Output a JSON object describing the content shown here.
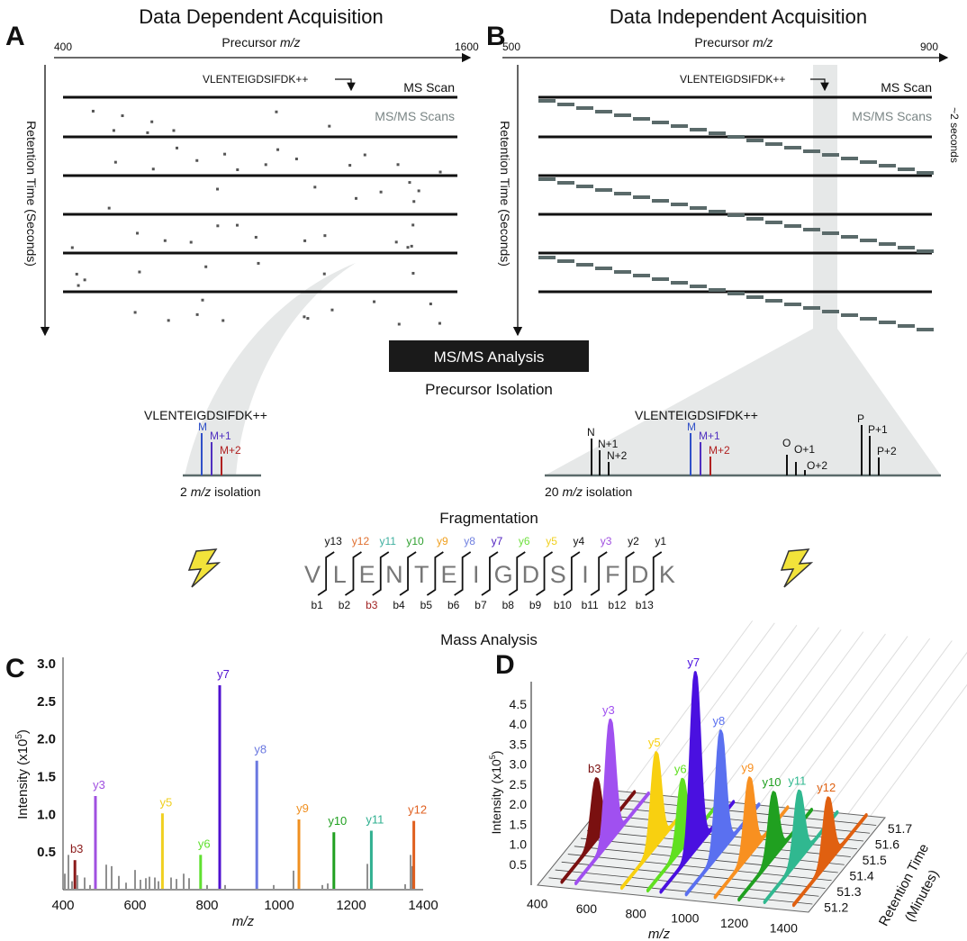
{
  "panelA": {
    "letter": "A",
    "title": "Data Dependent Acquisition",
    "x_axis": {
      "label_prefix": "Precursor ",
      "label_italic": "m/z",
      "min": "400",
      "max": "1600"
    },
    "y_axis_label": "Retention Time (Seconds)",
    "peptide": "VLENTEIGDSIFDK++",
    "ms_scan": "MS Scan",
    "msms_scans": "MS/MS Scans"
  },
  "panelB": {
    "letter": "B",
    "title": "Data Independent Acquisition",
    "x_axis": {
      "label_prefix": "Precursor ",
      "label_italic": "m/z",
      "min": "500",
      "max": "900"
    },
    "y_axis_label": "Retention Time (Seconds)",
    "peptide": "VLENTEIGDSIFDK++",
    "ms_scan": "MS Scan",
    "msms_scans": "MS/MS Scans",
    "cycle_label": "~2 seconds"
  },
  "analysis_box": "MS/MS Analysis",
  "precursor_isolation": "Precursor Isolation",
  "isolation_left": {
    "peptide": "VLENTEIGDSIFDK++",
    "peaks": [
      {
        "label": "M",
        "color": "#3050c8"
      },
      {
        "label": "M+1",
        "color": "#5030c0"
      },
      {
        "label": "M+2",
        "color": "#b02020"
      }
    ],
    "caption": {
      "pre": "2 ",
      "italic": "m/z",
      "post": " isolation"
    }
  },
  "isolation_right": {
    "peptide": "VLENTEIGDSIFDK++",
    "peaks": [
      {
        "label": "N",
        "color": "#111111"
      },
      {
        "label": "N+1",
        "color": "#111111"
      },
      {
        "label": "N+2",
        "color": "#111111"
      },
      {
        "label": "M",
        "color": "#3050c8"
      },
      {
        "label": "M+1",
        "color": "#5030c0"
      },
      {
        "label": "M+2",
        "color": "#b02020"
      },
      {
        "label": "O",
        "color": "#111111"
      },
      {
        "label": "O+1",
        "color": "#111111"
      },
      {
        "label": "O+2",
        "color": "#111111"
      },
      {
        "label": "P",
        "color": "#111111"
      },
      {
        "label": "P+1",
        "color": "#111111"
      },
      {
        "label": "P+2",
        "color": "#111111"
      }
    ],
    "caption": {
      "pre": "20 ",
      "italic": "m/z",
      "post": " isolation"
    }
  },
  "fragmentation": {
    "title": "Fragmentation",
    "sequence": [
      "V",
      "L",
      "E",
      "N",
      "T",
      "E",
      "I",
      "G",
      "D",
      "S",
      "I",
      "F",
      "D",
      "K"
    ],
    "y_ions": [
      {
        "label": "y13",
        "color": "#111111"
      },
      {
        "label": "y12",
        "color": "#e07030"
      },
      {
        "label": "y11",
        "color": "#40b0a0"
      },
      {
        "label": "y10",
        "color": "#30a030"
      },
      {
        "label": "y9",
        "color": "#f0a020"
      },
      {
        "label": "y8",
        "color": "#7080e0"
      },
      {
        "label": "y7",
        "color": "#5020c0"
      },
      {
        "label": "y6",
        "color": "#70e040"
      },
      {
        "label": "y5",
        "color": "#f0d020"
      },
      {
        "label": "y4",
        "color": "#111111"
      },
      {
        "label": "y3",
        "color": "#a050e0"
      },
      {
        "label": "y2",
        "color": "#111111"
      },
      {
        "label": "y1",
        "color": "#111111"
      }
    ],
    "b_ions": [
      {
        "label": "b1",
        "color": "#111111"
      },
      {
        "label": "b2",
        "color": "#111111"
      },
      {
        "label": "b3",
        "color": "#a02020"
      },
      {
        "label": "b4",
        "color": "#111111"
      },
      {
        "label": "b5",
        "color": "#111111"
      },
      {
        "label": "b6",
        "color": "#111111"
      },
      {
        "label": "b7",
        "color": "#111111"
      },
      {
        "label": "b8",
        "color": "#111111"
      },
      {
        "label": "b9",
        "color": "#111111"
      },
      {
        "label": "b10",
        "color": "#111111"
      },
      {
        "label": "b11",
        "color": "#111111"
      },
      {
        "label": "b12",
        "color": "#111111"
      },
      {
        "label": "b13",
        "color": "#111111"
      }
    ]
  },
  "mass_analysis": "Mass Analysis",
  "chart_data": [
    {
      "panel": "C",
      "type": "bar",
      "xlabel": "m/z",
      "ylabel": "Intensity (x10^5)",
      "ylabel_parts": {
        "pre": "Intensity (x10",
        "sup": "5",
        "post": ")"
      },
      "xlim": [
        400,
        1400
      ],
      "ylim": [
        0,
        3.0
      ],
      "xticks": [
        "400",
        "600",
        "800",
        "1000",
        "1200",
        "1400"
      ],
      "yticks": [
        "0.5",
        "1.0",
        "1.5",
        "2.0",
        "2.5",
        "3.0"
      ],
      "labeled_peaks": [
        {
          "label": "b3",
          "mz": 433,
          "intensity": 0.38,
          "color": "#8b1a1a"
        },
        {
          "label": "y3",
          "mz": 490,
          "intensity": 1.23,
          "color": "#a050e0"
        },
        {
          "label": "y5",
          "mz": 676,
          "intensity": 1.0,
          "color": "#f0d020"
        },
        {
          "label": "y6",
          "mz": 782,
          "intensity": 0.45,
          "color": "#60e030"
        },
        {
          "label": "y7",
          "mz": 835,
          "intensity": 2.7,
          "color": "#5010d0"
        },
        {
          "label": "y8",
          "mz": 938,
          "intensity": 1.7,
          "color": "#6a78e0"
        },
        {
          "label": "y9",
          "mz": 1055,
          "intensity": 0.92,
          "color": "#f09020"
        },
        {
          "label": "y10",
          "mz": 1152,
          "intensity": 0.75,
          "color": "#20a020"
        },
        {
          "label": "y11",
          "mz": 1256,
          "intensity": 0.77,
          "color": "#30b090"
        },
        {
          "label": "y12",
          "mz": 1374,
          "intensity": 0.9,
          "color": "#e06020"
        }
      ],
      "other_peaks": [
        [
          405,
          0.2
        ],
        [
          415,
          0.45
        ],
        [
          425,
          0.1
        ],
        [
          440,
          0.18
        ],
        [
          460,
          0.15
        ],
        [
          475,
          0.05
        ],
        [
          520,
          0.32
        ],
        [
          535,
          0.3
        ],
        [
          555,
          0.17
        ],
        [
          575,
          0.08
        ],
        [
          600,
          0.25
        ],
        [
          615,
          0.12
        ],
        [
          630,
          0.14
        ],
        [
          640,
          0.16
        ],
        [
          655,
          0.15
        ],
        [
          665,
          0.1
        ],
        [
          700,
          0.15
        ],
        [
          715,
          0.13
        ],
        [
          735,
          0.2
        ],
        [
          750,
          0.14
        ],
        [
          800,
          0.05
        ],
        [
          850,
          0.05
        ],
        [
          985,
          0.05
        ],
        [
          1040,
          0.24
        ],
        [
          1120,
          0.05
        ],
        [
          1135,
          0.07
        ],
        [
          1245,
          0.33
        ],
        [
          1350,
          0.06
        ],
        [
          1365,
          0.45
        ],
        [
          1370,
          0.3
        ]
      ]
    },
    {
      "panel": "D",
      "type": "area",
      "xlabel": "m/z",
      "ylabel_parts": {
        "pre": "Intensity (x10",
        "sup": "5",
        "post": ")"
      },
      "zlabel": [
        "Retention Time",
        "(Minutes)"
      ],
      "xlim": [
        350,
        1450
      ],
      "rtlim": [
        51.15,
        51.75
      ],
      "xticks": [
        "400",
        "600",
        "800",
        "1000",
        "1200",
        "1400"
      ],
      "yticks": [
        "0.5",
        "1.0",
        "1.5",
        "2.0",
        "2.5",
        "3.0",
        "3.5",
        "4.0",
        "4.5"
      ],
      "rtticks": [
        "51.2",
        "51.3",
        "51.4",
        "51.5",
        "51.6",
        "51.7"
      ],
      "peak_rt_center": 51.45,
      "ions": [
        {
          "label": "b3",
          "mz": 433,
          "max_intensity": 1.5,
          "color": "#7a1010"
        },
        {
          "label": "y3",
          "mz": 490,
          "max_intensity": 3.0,
          "color": "#a050f0"
        },
        {
          "label": "y5",
          "mz": 676,
          "max_intensity": 2.3,
          "color": "#f8d010"
        },
        {
          "label": "y6",
          "mz": 782,
          "max_intensity": 1.7,
          "color": "#60e020"
        },
        {
          "label": "y7",
          "mz": 835,
          "max_intensity": 4.4,
          "color": "#4a10e0"
        },
        {
          "label": "y8",
          "mz": 938,
          "max_intensity": 3.0,
          "color": "#5a70f0"
        },
        {
          "label": "y9",
          "mz": 1055,
          "max_intensity": 1.9,
          "color": "#f89020"
        },
        {
          "label": "y10",
          "mz": 1152,
          "max_intensity": 1.6,
          "color": "#20a020"
        },
        {
          "label": "y11",
          "mz": 1256,
          "max_intensity": 1.7,
          "color": "#30b890"
        },
        {
          "label": "y12",
          "mz": 1374,
          "max_intensity": 1.6,
          "color": "#e06010"
        }
      ]
    }
  ]
}
